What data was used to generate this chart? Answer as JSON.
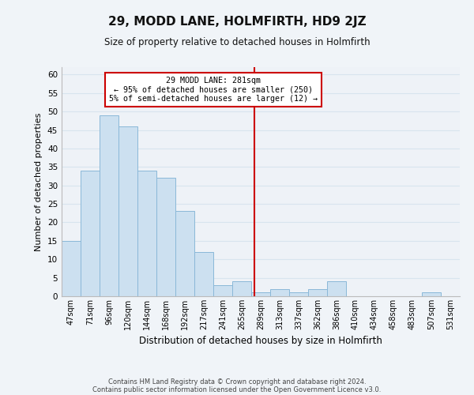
{
  "title": "29, MODD LANE, HOLMFIRTH, HD9 2JZ",
  "subtitle": "Size of property relative to detached houses in Holmfirth",
  "xlabel": "Distribution of detached houses by size in Holmfirth",
  "ylabel": "Number of detached properties",
  "bar_labels": [
    "47sqm",
    "71sqm",
    "96sqm",
    "120sqm",
    "144sqm",
    "168sqm",
    "192sqm",
    "217sqm",
    "241sqm",
    "265sqm",
    "289sqm",
    "313sqm",
    "337sqm",
    "362sqm",
    "386sqm",
    "410sqm",
    "434sqm",
    "458sqm",
    "483sqm",
    "507sqm",
    "531sqm"
  ],
  "bar_values": [
    15,
    34,
    49,
    46,
    34,
    32,
    23,
    12,
    3,
    4,
    1,
    2,
    1,
    2,
    4,
    0,
    0,
    0,
    0,
    1,
    0
  ],
  "bar_color": "#cce0f0",
  "bar_edge_color": "#8ab8d8",
  "grid_color": "#d8e4ee",
  "background_color": "#eef2f7",
  "vline_color": "#cc0000",
  "annotation_text": "29 MODD LANE: 281sqm\n← 95% of detached houses are smaller (250)\n5% of semi-detached houses are larger (12) →",
  "annotation_box_facecolor": "#ffffff",
  "annotation_box_edgecolor": "#cc0000",
  "footnote_line1": "Contains HM Land Registry data © Crown copyright and database right 2024.",
  "footnote_line2": "Contains public sector information licensed under the Open Government Licence v3.0.",
  "ylim": [
    0,
    62
  ],
  "yticks": [
    0,
    5,
    10,
    15,
    20,
    25,
    30,
    35,
    40,
    45,
    50,
    55,
    60
  ],
  "fig_width": 6.0,
  "fig_height": 5.0,
  "dpi": 100
}
